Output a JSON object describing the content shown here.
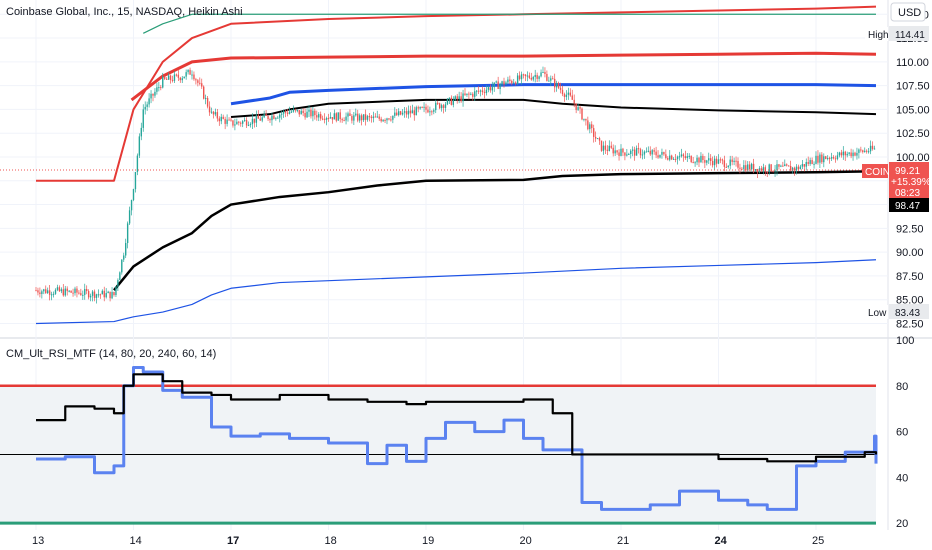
{
  "header": {
    "symbol_title": "Coinbase Global, Inc., 15, NASDAQ, Heikin Ashi",
    "currency": "USD"
  },
  "indicator": {
    "label": "CM_Ult_RSI_MTF (14, 80, 20, 240, 60, 14)"
  },
  "badges": {
    "high_label": "High",
    "high_value": "114.41",
    "low_label": "Low",
    "low_value": "83.43",
    "coin_label": "COIN",
    "coin_price": "99.21",
    "coin_change": "+15.39%",
    "coin_timer": "08:23",
    "black_value": "98.47"
  },
  "colors": {
    "up": "#26a69a",
    "down": "#ef5350",
    "red_line": "#e53935",
    "blue_line": "#1e53e5",
    "black_line": "#000000",
    "teal_line": "#2a9d78",
    "rsi_blue": "#5b82f0",
    "rsi_band": "#f0f3f6"
  },
  "chart_data": [
    {
      "type": "line",
      "title": "Coinbase Global, Inc., 15, NASDAQ, Heikin Ashi",
      "y_axis_ticks": [
        "115.00",
        "112.50",
        "110.00",
        "107.50",
        "105.00",
        "102.50",
        "100.00",
        "97.50",
        "95.00",
        "92.50",
        "90.00",
        "87.50",
        "85.00",
        "82.50"
      ],
      "x_axis_ticks": [
        "13",
        "14",
        "17",
        "18",
        "19",
        "20",
        "21",
        "24",
        "25"
      ],
      "ylim": [
        81.5,
        116.5
      ],
      "grid": true,
      "series": [
        {
          "kind": "red_upper_thick",
          "x": [
            0.98,
            1.3,
            1.6,
            2.0,
            3,
            4,
            5,
            6,
            7,
            8,
            8.9
          ],
          "y": [
            106,
            108.5,
            110,
            110.4,
            110.5,
            110.6,
            110.6,
            110.7,
            110.8,
            110.9,
            110.8
          ]
        },
        {
          "kind": "red_upper_outer",
          "x": [
            0,
            0.8,
            1.0,
            1.3,
            1.6,
            2.0,
            3,
            4,
            5,
            6,
            7,
            8,
            8.9
          ],
          "y": [
            97.5,
            97.5,
            105,
            110,
            112.5,
            114,
            114.5,
            114.8,
            115,
            115.2,
            115.4,
            115.6,
            115.8
          ]
        },
        {
          "kind": "teal_upper",
          "x": [
            1.1,
            1.3,
            1.6,
            2.0,
            3,
            4,
            5,
            6,
            7,
            8,
            8.9
          ],
          "y": [
            113,
            114,
            115,
            115,
            115,
            115,
            115,
            115,
            115,
            115,
            115
          ]
        },
        {
          "kind": "blue_mid",
          "x": [
            2,
            2.4,
            2.6,
            3,
            4,
            5,
            6,
            7,
            8,
            8.9
          ],
          "y": [
            105.6,
            106.2,
            106.8,
            107,
            107.4,
            107.6,
            107.6,
            107.6,
            107.6,
            107.5
          ]
        },
        {
          "kind": "black_mid",
          "x": [
            2,
            2.4,
            2.6,
            3,
            4,
            5,
            5.4,
            6,
            7,
            8,
            8.9
          ],
          "y": [
            104.2,
            104.5,
            105,
            105.6,
            106,
            106,
            105.6,
            105.2,
            104.9,
            104.7,
            104.5
          ]
        },
        {
          "kind": "black_lower",
          "x": [
            0.8,
            1.0,
            1.3,
            1.6,
            1.8,
            2.0,
            2.5,
            3,
            3.5,
            4,
            5,
            5.4,
            6,
            7,
            8,
            8.9
          ],
          "y": [
            86,
            88.5,
            90.5,
            92,
            93.8,
            95,
            95.8,
            96.3,
            97,
            97.5,
            97.6,
            98,
            98.2,
            98.3,
            98.4,
            98.5
          ]
        },
        {
          "kind": "blue_lower",
          "x": [
            0,
            0.8,
            1.0,
            1.3,
            1.6,
            1.8,
            2.0,
            2.5,
            3,
            4,
            5,
            6,
            7,
            8,
            8.9
          ],
          "y": [
            82.5,
            82.7,
            83.2,
            83.7,
            84.5,
            85.5,
            86.2,
            86.8,
            87,
            87.4,
            87.8,
            88.3,
            88.6,
            88.9,
            89.2
          ]
        },
        {
          "kind": "close",
          "x": [
            0,
            0.5,
            0.8,
            0.9,
            1.0,
            1.1,
            1.3,
            1.5,
            1.6,
            1.7,
            1.8,
            2.0,
            2.3,
            2.6,
            3,
            3.5,
            4,
            4.3,
            4.8,
            5,
            5.2,
            5.5,
            5.8,
            6,
            6.2,
            6.6,
            7,
            7.4,
            7.8,
            8,
            8.3,
            8.6,
            8.9
          ],
          "y": [
            86,
            85.7,
            85.5,
            90,
            97,
            105,
            108,
            108.5,
            109,
            107,
            104.5,
            103.5,
            104,
            104.8,
            104.3,
            104,
            105,
            106,
            107.8,
            108.3,
            108.8,
            106,
            101,
            100.5,
            100.5,
            100,
            99.5,
            98.8,
            98.8,
            99.8,
            100.3,
            100.8,
            99.8
          ]
        }
      ]
    },
    {
      "type": "line",
      "title": "CM_Ult_RSI_MTF (14, 80, 20, 240, 60, 14)",
      "y_axis_ticks": [
        "100",
        "80",
        "60",
        "40",
        "20"
      ],
      "ylim": [
        17,
        100
      ],
      "levels": [
        80,
        50,
        20
      ],
      "series": [
        {
          "kind": "rsi",
          "x": [
            0,
            0.3,
            0.6,
            0.8,
            0.9,
            1.0,
            1.1,
            1.3,
            1.5,
            1.8,
            2.0,
            2.3,
            2.6,
            3,
            3.4,
            3.6,
            3.8,
            4,
            4.2,
            4.5,
            4.8,
            5,
            5.2,
            5.6,
            5.8,
            6,
            6.3,
            6.6,
            7,
            7.3,
            7.5,
            7.8,
            8,
            8.3,
            8.6,
            8.8,
            8.9
          ],
          "y": [
            48,
            49,
            42,
            45,
            80,
            88,
            86,
            78,
            75,
            62,
            58,
            59,
            57,
            55,
            46,
            54,
            47,
            57,
            64,
            60,
            65,
            57,
            52,
            29,
            26,
            26,
            28,
            34,
            30,
            28,
            26,
            45,
            47,
            51,
            58,
            52,
            46
          ]
        },
        {
          "kind": "signal",
          "x": [
            0,
            0.3,
            0.6,
            0.8,
            0.9,
            1.0,
            1.3,
            1.5,
            1.8,
            2.0,
            2.5,
            3,
            3.4,
            3.8,
            4,
            4.5,
            5,
            5.3,
            5.5,
            6,
            6.5,
            7,
            7.5,
            8,
            8.5,
            8.9
          ],
          "y": [
            65,
            71,
            70,
            68,
            80,
            85,
            82,
            77,
            76,
            74,
            76,
            74,
            73,
            72,
            73,
            73,
            74,
            68,
            50,
            50,
            50,
            48,
            47,
            49,
            51,
            50
          ]
        }
      ]
    }
  ]
}
